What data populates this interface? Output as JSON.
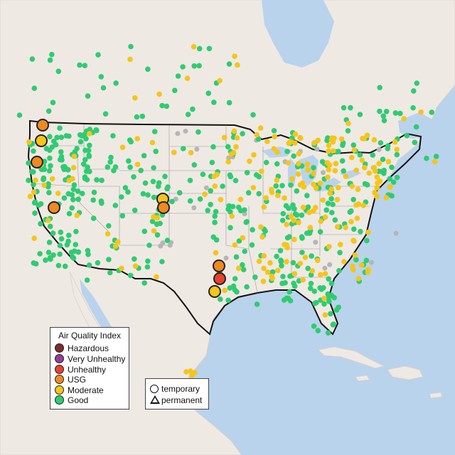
{
  "legend": {
    "title": "Air Quality Index",
    "categories": [
      {
        "label": "Hazardous",
        "color": "#7e2a2a"
      },
      {
        "label": "Very Unhealthy",
        "color": "#8f3f97"
      },
      {
        "label": "Unhealthy",
        "color": "#e8412e"
      },
      {
        "label": "USG",
        "color": "#ef8a1e"
      },
      {
        "label": "Moderate",
        "color": "#f5c518"
      },
      {
        "label": "Good",
        "color": "#2ecc71"
      }
    ]
  },
  "monitor_type_legend": {
    "temporary_label": "temporary",
    "permanent_label": "permanent"
  },
  "colors": {
    "ocean": "#b9d3ec",
    "land": "#efe9e4",
    "inactive_monitor": "#b5b5b5",
    "border": "#111111"
  }
}
